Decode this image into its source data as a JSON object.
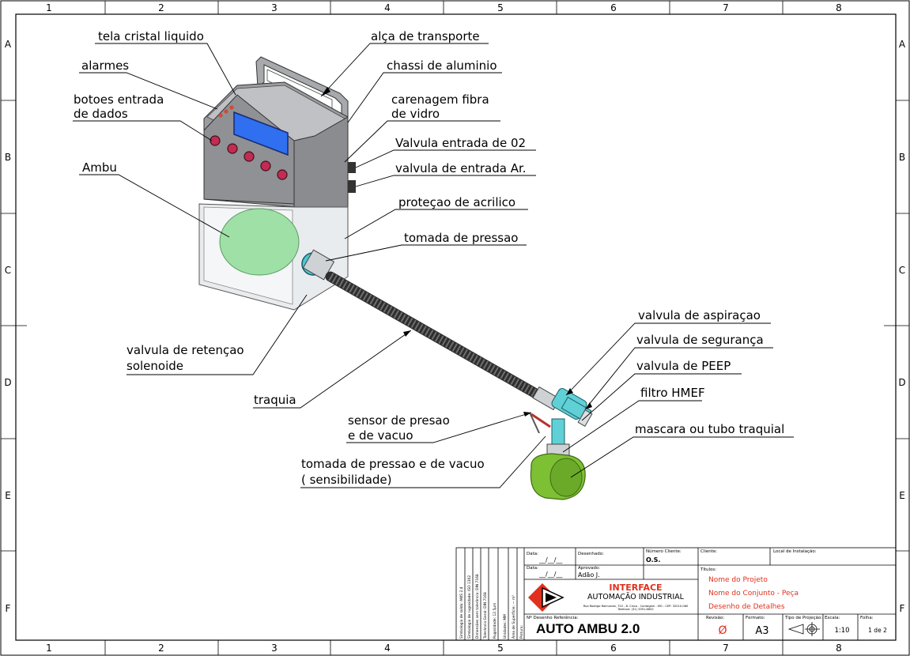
{
  "grid": {
    "columns": [
      "1",
      "2",
      "3",
      "4",
      "5",
      "6",
      "7",
      "8"
    ],
    "rows": [
      "A",
      "B",
      "C",
      "D",
      "E",
      "F"
    ]
  },
  "labels": {
    "tela": "tela cristal liquido",
    "alarmes": "alarmes",
    "botoes_1": "botoes entrada",
    "botoes_2": "de dados",
    "ambu": "Ambu",
    "alca": "alça de transporte",
    "chassi": "chassi de aluminio",
    "carenagem_1": "carenagem fibra",
    "carenagem_2": "de vidro",
    "valvula_o2": "Valvula entrada de 02",
    "valvula_ar": "valvula de entrada Ar.",
    "protecao": "proteçao de acrilico",
    "tomada_pressao": "tomada de pressao",
    "retencao_1": "valvula de retençao",
    "retencao_2": "solenoide",
    "traquia": "traquia",
    "aspiracao": "valvula de aspiraçao",
    "seguranca": "valvula de segurança",
    "peep": "valvula de PEEP",
    "filtro": "filtro HMEF",
    "mascara": "mascara ou tubo traquial",
    "sensor_1": "sensor de presao",
    "sensor_2": "e de vacuo",
    "tomada_vacuo_1": "tomada de pressao e de vacuo",
    "tomada_vacuo_2": "( sensibilidade)"
  },
  "title_block": {
    "side_1": "Simbologia de solda: AWS 2.4",
    "side_2": "Simbologia de rugosidade: ISO 1302",
    "side_3": "Dimensões sem tolerância: DIN 7168",
    "side_4": "Tolerância Geral: DIN 7168",
    "side_5": "Rugosidade: 12.5µm",
    "side_6": "Unidades: MM",
    "side_7": "Área de Superfície: — m²",
    "side_8": "Pintura:",
    "data_label": "Data:",
    "data_value": "__/__/__",
    "data2_label": "Data:",
    "data2_value": "__/__/__",
    "desenhado_label": "Desenhado:",
    "aprovado_label": "Aprovado:",
    "aprovado_value": "Adão J.",
    "numero_cliente_label": "Número Cliente:",
    "numero_cliente_value": "O.S.",
    "cliente_label": "Cliente:",
    "local_label": "Local de Instalação:",
    "titulos_label": "Títulos:",
    "nome_projeto": "Nome do Projeto",
    "nome_conjunto": "Nome do Conjunto - Peça",
    "desenho_detalhes": "Desenho de Detalhes",
    "company_name": "INTERFACE",
    "company_sub": "AUTOMAÇÃO INDUSTRIAL",
    "company_address": "Rua Rodrigo Raimunda, 720 - B. Cinco - Contagem - MG - CEP: 32010-060",
    "company_phone": "Telefone: (31) 3391-6652",
    "ref_label": "Nº Desenho Referência:",
    "drawing_number": "AUTO AMBU  2.0",
    "revisao_label": "Revisão:",
    "revisao_value": "Ø",
    "formato_label": "Formato:",
    "formato_value": "A3",
    "projecao_label": "Tipo de Projeção:",
    "escala_label": "Escala:",
    "escala_value": "1:10",
    "folha_label": "Folha:",
    "folha_value": "1 de 2"
  },
  "colors": {
    "housing": "#9a9c9f",
    "screen": "#2f6ff0",
    "ambu_green": "#9fe0a6",
    "buttons": "#c22c52",
    "tube": "#3a3a3a",
    "tee": "#5fd0d6",
    "mask": "#7dc033",
    "brand_red": "#e0301e"
  }
}
